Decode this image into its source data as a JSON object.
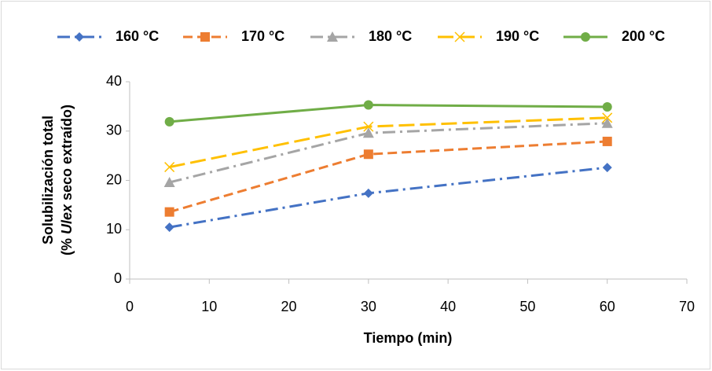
{
  "chart_data": {
    "type": "line",
    "x_label": "Tiempo (min)",
    "y_label": {
      "line1": "Solubilización total",
      "line2": [
        "(% ",
        "Ulex",
        " seco extraído)"
      ]
    },
    "x": [
      5,
      30,
      60
    ],
    "series": [
      {
        "name": "160 °C",
        "color": "#4472c4",
        "marker": "diamond",
        "dash": "dashdot",
        "values": [
          10.5,
          17.4,
          22.6
        ]
      },
      {
        "name": "170 °C",
        "color": "#ed7d31",
        "marker": "square",
        "dash": "dash",
        "values": [
          13.6,
          25.3,
          27.9
        ]
      },
      {
        "name": "180 °C",
        "color": "#a5a5a5",
        "marker": "triangle",
        "dash": "dashdot",
        "values": [
          19.6,
          29.6,
          31.6
        ]
      },
      {
        "name": "190 °C",
        "color": "#ffc000",
        "marker": "x",
        "dash": "longdash",
        "values": [
          22.7,
          30.9,
          32.7
        ]
      },
      {
        "name": "200 °C",
        "color": "#70ad47",
        "marker": "circle",
        "dash": "solid",
        "values": [
          31.9,
          35.3,
          34.9
        ]
      }
    ],
    "xlim": [
      0,
      70
    ],
    "xticks": [
      0,
      10,
      20,
      30,
      40,
      50,
      60,
      70
    ],
    "ylim": [
      0,
      40
    ],
    "yticks": [
      0,
      10,
      20,
      30,
      40
    ],
    "grid": false,
    "legend": "top"
  }
}
